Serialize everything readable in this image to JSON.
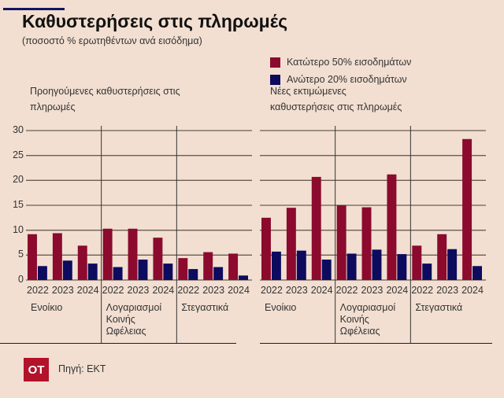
{
  "title": "Καθυστερήσεις στις πληρωμές",
  "subtitle": "(ποσοστό % ερωτηθέντων ανά εισόδημα)",
  "source": "Πηγή: ΕΚΤ",
  "logo_text": "OT",
  "colors": {
    "series1": "#8b0a2e",
    "series2": "#0d0b5e",
    "background": "#f2dfd1",
    "logo": "#b3122b"
  },
  "legend": [
    "Κατώτερο 50% εισοδημάτων",
    "Ανώτερο 20% εισοδημάτων"
  ],
  "chart_data": [
    {
      "type": "bar",
      "title": "Προηγούμενες καθυστερήσεις στις πληρωμές",
      "groups": [
        "Ενοίκιο",
        "Λογαριασμοί Κοινής Ωφέλειας",
        "Στεγαστικά"
      ],
      "categories": [
        "2022",
        "2023",
        "2024"
      ],
      "ylim": [
        0,
        30
      ],
      "yticks": [
        0,
        5,
        10,
        15,
        20,
        25,
        30
      ],
      "grid": true,
      "legend_position": "top-right",
      "series": [
        {
          "name": "Κατώτερο 50% εισοδημάτων",
          "values": [
            [
              9.2,
              9.4,
              6.9
            ],
            [
              10.3,
              10.3,
              8.5
            ],
            [
              4.4,
              5.6,
              5.3
            ]
          ]
        },
        {
          "name": "Ανώτερο 20% εισοδημάτων",
          "values": [
            [
              2.8,
              3.9,
              3.3
            ],
            [
              2.6,
              4.1,
              3.3
            ],
            [
              2.2,
              2.6,
              0.9
            ]
          ]
        }
      ]
    },
    {
      "type": "bar",
      "title": "Νέες εκτιμώμενες καθυστερήσεις στις πληρωμές",
      "groups": [
        "Ενοίκιο",
        "Λογαριασμοί Κοινής Ωφέλειας",
        "Στεγαστικά"
      ],
      "categories": [
        "2022",
        "2023",
        "2024"
      ],
      "ylim": [
        0,
        30
      ],
      "grid": true,
      "series": [
        {
          "name": "Κατώτερο 50% εισοδημάτων",
          "values": [
            [
              12.5,
              14.5,
              20.7
            ],
            [
              15.0,
              14.6,
              21.2
            ],
            [
              6.9,
              9.2,
              28.3
            ]
          ]
        },
        {
          "name": "Ανώτερο 20% εισοδημάτων",
          "values": [
            [
              5.7,
              5.9,
              4.1
            ],
            [
              5.3,
              6.1,
              5.2
            ],
            [
              3.3,
              6.2,
              2.8
            ]
          ]
        }
      ]
    }
  ]
}
